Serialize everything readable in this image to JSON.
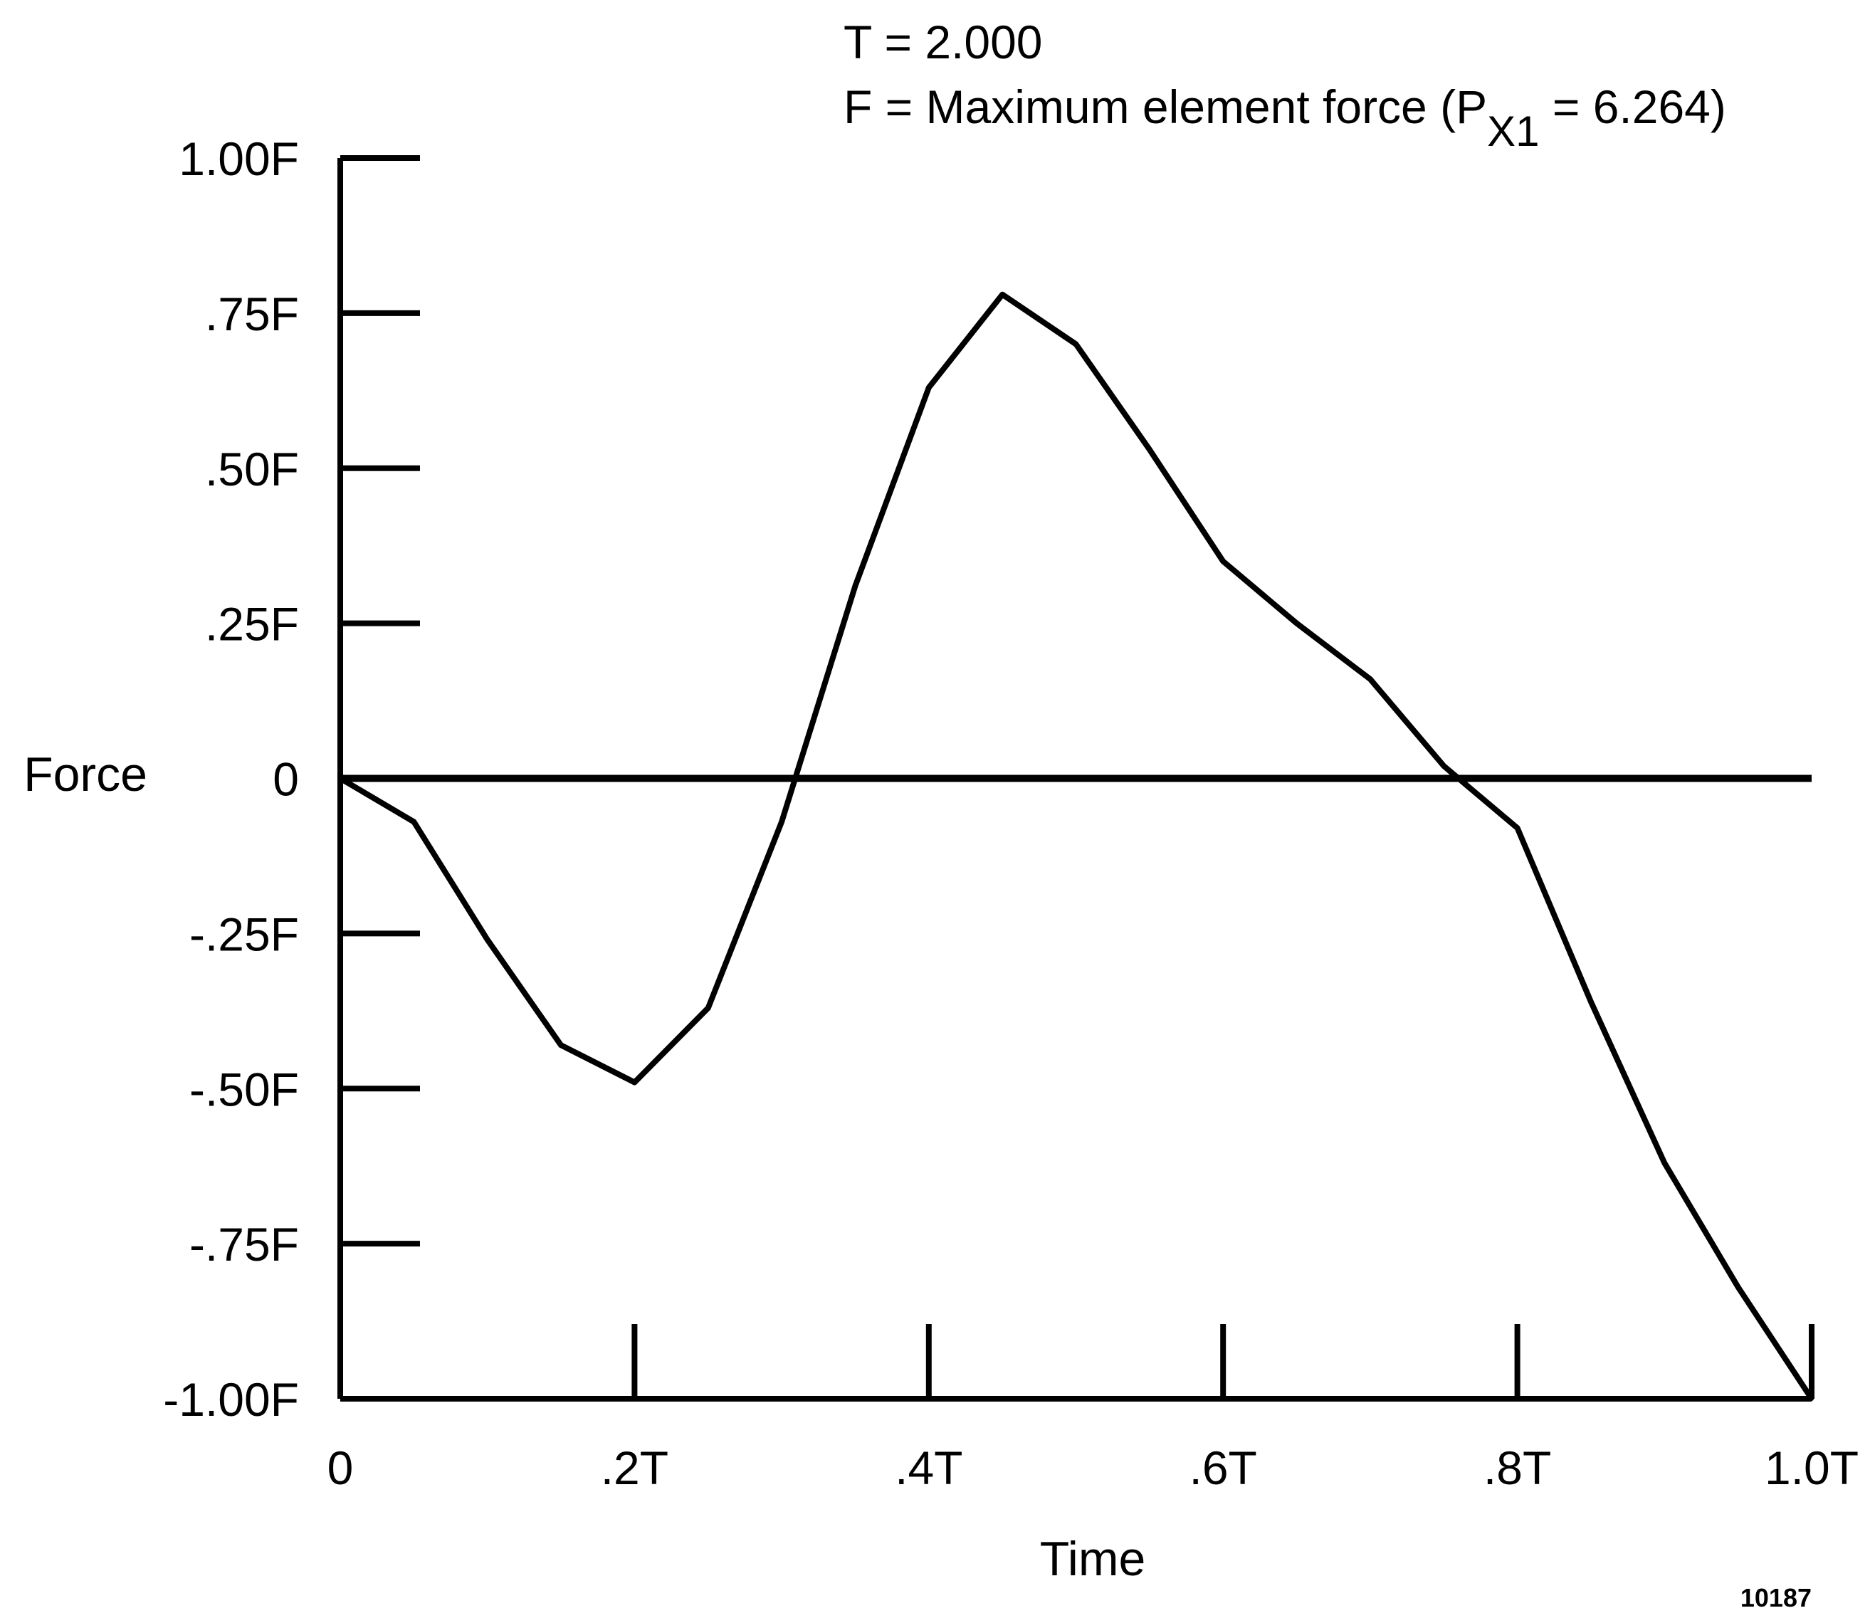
{
  "header": {
    "line1": "T = 2.000",
    "line2_prefix": "F = Maximum element force (P",
    "line2_subscript": "X1",
    "line2_suffix": " = 6.264)"
  },
  "figure_id": "10187",
  "chart_data": {
    "type": "line",
    "title": "",
    "xlabel": "Time",
    "ylabel": "Force",
    "xlim": [
      0,
      1.0
    ],
    "ylim": [
      -1.0,
      1.0
    ],
    "x_ticks": [
      {
        "value": 0,
        "label": "0"
      },
      {
        "value": 0.2,
        "label": ".2T"
      },
      {
        "value": 0.4,
        "label": ".4T"
      },
      {
        "value": 0.6,
        "label": ".6T"
      },
      {
        "value": 0.8,
        "label": ".8T"
      },
      {
        "value": 1.0,
        "label": "1.0T"
      }
    ],
    "y_ticks": [
      {
        "value": 1.0,
        "label": "1.00F"
      },
      {
        "value": 0.75,
        "label": ".75F"
      },
      {
        "value": 0.5,
        "label": ".50F"
      },
      {
        "value": 0.25,
        "label": ".25F"
      },
      {
        "value": 0,
        "label": "0"
      },
      {
        "value": -0.25,
        "label": "-.25F"
      },
      {
        "value": -0.5,
        "label": "-.50F"
      },
      {
        "value": -0.75,
        "label": "-.75F"
      },
      {
        "value": -1.0,
        "label": "-1.00F"
      }
    ],
    "grid": false,
    "series": [
      {
        "x": [
          0,
          0.05,
          0.1,
          0.15,
          0.2,
          0.25,
          0.3,
          0.35,
          0.4,
          0.45,
          0.5,
          0.55,
          0.6,
          0.65,
          0.7,
          0.75,
          0.8,
          0.85,
          0.9,
          0.95,
          1.0
        ],
        "y": [
          0,
          -0.07,
          -0.26,
          -0.43,
          -0.49,
          -0.37,
          -0.07,
          0.31,
          0.63,
          0.78,
          0.7,
          0.53,
          0.35,
          0.25,
          0.16,
          0.02,
          -0.08,
          -0.36,
          -0.62,
          -0.82,
          -1.0
        ]
      }
    ]
  }
}
